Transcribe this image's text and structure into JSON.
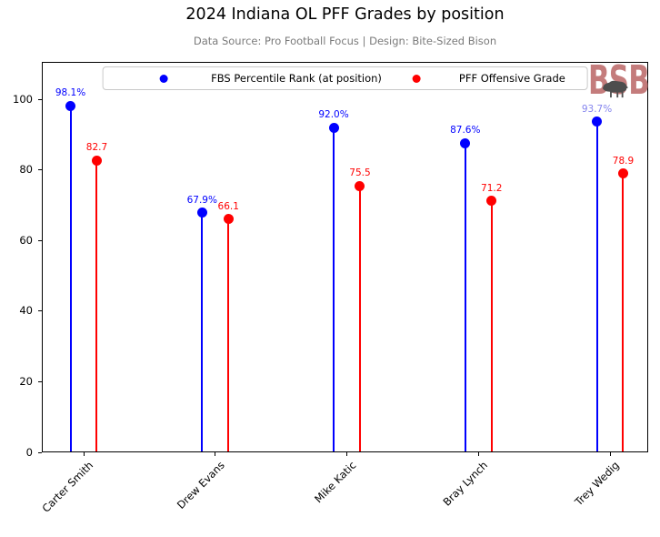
{
  "chart_data": {
    "type": "stem",
    "title": "2024 Indiana OL PFF Grades by position",
    "subtitle": "Data Source: Pro Football Focus | Design: Bite-Sized Bison",
    "categories": [
      "Carter Smith",
      "Drew Evans",
      "Mike Katic",
      "Bray Lynch",
      "Trey Wedig"
    ],
    "series": [
      {
        "name": "FBS Percentile Rank (at position)",
        "color": "#0000ff",
        "offset": -0.1,
        "values": [
          98.1,
          67.9,
          92.0,
          87.6,
          93.7
        ],
        "labels": [
          "98.1%",
          "67.9%",
          "92.0%",
          "87.6%",
          "93.7%"
        ],
        "label_colors": [
          "#0000ff",
          "#0000ff",
          "#0000ff",
          "#0000ff",
          "#8585ee"
        ]
      },
      {
        "name": "PFF Offensive Grade",
        "color": "#ff0000",
        "offset": 0.1,
        "values": [
          82.7,
          66.1,
          75.5,
          71.2,
          78.9
        ],
        "labels": [
          "82.7",
          "66.1",
          "75.5",
          "71.2",
          "78.9"
        ],
        "label_colors": [
          "#ff0000",
          "#ff0000",
          "#ff0000",
          "#ff0000",
          "#ff0000"
        ]
      }
    ],
    "yticks": [
      0,
      20,
      40,
      60,
      80,
      100
    ],
    "ylim": [
      0,
      110.6
    ],
    "xlabel": "",
    "ylabel": "",
    "grid": false,
    "legend_position": "upper center"
  },
  "watermark": {
    "text": "BSB",
    "text_color": "#c47c7c",
    "bison_color": "#4d4d4d"
  }
}
